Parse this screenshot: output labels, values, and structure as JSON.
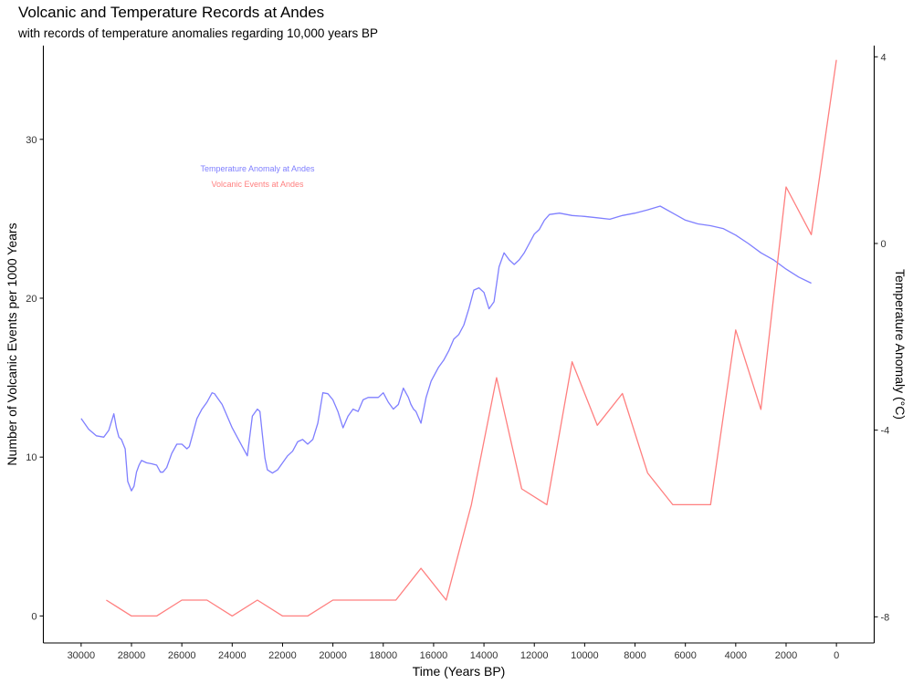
{
  "chart_data": {
    "type": "line",
    "title": "Volcanic and Temperature Records at Andes",
    "subtitle": "with records of temperature anomalies regarding 10,000 years BP",
    "xlabel": "Time (Years BP)",
    "ylabel": "Number of Volcanic Events per 1000 Years",
    "y2label": "Temperature Anomaly (°C)",
    "xlim": [
      31500,
      -1500
    ],
    "x_reversed": true,
    "ylim": [
      -1.7,
      35.9
    ],
    "y2lim": [
      -8.56,
      4.24
    ],
    "x_ticks": [
      30000,
      28000,
      26000,
      24000,
      22000,
      20000,
      18000,
      16000,
      14000,
      12000,
      10000,
      8000,
      6000,
      4000,
      2000,
      0
    ],
    "y_ticks": [
      0,
      10,
      20,
      30
    ],
    "y2_ticks": [
      4,
      0,
      -4,
      -8
    ],
    "grid": false,
    "annotations": [
      "Temperature Anomaly at Andes",
      "Volcanic Events at Andes"
    ],
    "colors": {
      "temperature": "#7f7fff",
      "volcanic": "#ff7f7f",
      "axis": "#000000",
      "tick_text": "#333333"
    },
    "series": [
      {
        "axis": "right",
        "color": "#7f7fff",
        "x": [
          30000,
          29700,
          29400,
          29100,
          28900,
          28700,
          28600,
          28500,
          28400,
          28250,
          28150,
          28000,
          27900,
          27800,
          27700,
          27600,
          27400,
          27200,
          27000,
          26850,
          26750,
          26600,
          26400,
          26200,
          26000,
          25800,
          25700,
          25600,
          25400,
          25200,
          25000,
          24800,
          24700,
          24600,
          24400,
          24200,
          24000,
          23800,
          23600,
          23400,
          23200,
          23000,
          22900,
          22800,
          22700,
          22600,
          22400,
          22200,
          22000,
          21800,
          21600,
          21400,
          21200,
          21000,
          20800,
          20600,
          20400,
          20200,
          20000,
          19800,
          19600,
          19400,
          19200,
          19000,
          18800,
          18600,
          18400,
          18200,
          18000,
          17800,
          17600,
          17400,
          17200,
          17000,
          16900,
          16800,
          16700,
          16500,
          16300,
          16100,
          16000,
          15800,
          15600,
          15400,
          15200,
          15000,
          14800,
          14600,
          14400,
          14200,
          14000,
          13800,
          13600,
          13400,
          13200,
          13000,
          12800,
          12600,
          12400,
          12200,
          12000,
          11800,
          11600,
          11400,
          11000,
          10500,
          10000,
          9500,
          9000,
          8500,
          8000,
          7500,
          7000,
          6500,
          6000,
          5500,
          5000,
          4500,
          4000,
          3500,
          3000,
          2500,
          2000,
          1500,
          1000
        ],
        "y": [
          -3.75,
          -3.98,
          -4.12,
          -4.15,
          -4.0,
          -3.65,
          -3.95,
          -4.15,
          -4.2,
          -4.4,
          -5.1,
          -5.3,
          -5.2,
          -4.9,
          -4.75,
          -4.65,
          -4.7,
          -4.72,
          -4.75,
          -4.9,
          -4.9,
          -4.8,
          -4.5,
          -4.3,
          -4.3,
          -4.4,
          -4.35,
          -4.15,
          -3.75,
          -3.55,
          -3.4,
          -3.2,
          -3.22,
          -3.3,
          -3.45,
          -3.7,
          -3.95,
          -4.15,
          -4.35,
          -4.55,
          -3.7,
          -3.55,
          -3.6,
          -4.1,
          -4.6,
          -4.85,
          -4.92,
          -4.85,
          -4.7,
          -4.55,
          -4.45,
          -4.25,
          -4.2,
          -4.3,
          -4.2,
          -3.85,
          -3.2,
          -3.22,
          -3.35,
          -3.6,
          -3.95,
          -3.7,
          -3.55,
          -3.6,
          -3.35,
          -3.3,
          -3.3,
          -3.3,
          -3.2,
          -3.4,
          -3.55,
          -3.45,
          -3.1,
          -3.3,
          -3.45,
          -3.55,
          -3.6,
          -3.85,
          -3.3,
          -2.95,
          -2.85,
          -2.65,
          -2.5,
          -2.3,
          -2.05,
          -1.95,
          -1.75,
          -1.4,
          -1.0,
          -0.95,
          -1.05,
          -1.4,
          -1.25,
          -0.5,
          -0.2,
          -0.35,
          -0.45,
          -0.35,
          -0.2,
          0.0,
          0.2,
          0.3,
          0.5,
          0.62,
          0.65,
          0.6,
          0.58,
          0.55,
          0.52,
          0.6,
          0.65,
          0.72,
          0.8,
          0.65,
          0.5,
          0.42,
          0.38,
          0.32,
          0.18,
          0.0,
          -0.2,
          -0.35,
          -0.55,
          -0.72,
          -0.85
        ]
      },
      {
        "axis": "left",
        "color": "#ff7f7f",
        "x": [
          29000,
          28000,
          27000,
          26000,
          25000,
          24000,
          23000,
          22000,
          21000,
          20000,
          19000,
          18000,
          17500,
          16500,
          15500,
          14500,
          13500,
          12500,
          11500,
          10500,
          9500,
          8500,
          7500,
          6500,
          6000,
          5000,
          4000,
          3000,
          2000,
          1000,
          0
        ],
        "y": [
          1,
          0,
          0,
          1,
          1,
          0,
          1,
          0,
          0,
          1,
          1,
          1,
          1,
          3,
          1,
          7,
          15,
          8,
          7,
          16,
          12,
          14,
          9,
          7,
          7,
          7,
          18,
          13,
          27,
          24,
          35
        ]
      }
    ]
  }
}
